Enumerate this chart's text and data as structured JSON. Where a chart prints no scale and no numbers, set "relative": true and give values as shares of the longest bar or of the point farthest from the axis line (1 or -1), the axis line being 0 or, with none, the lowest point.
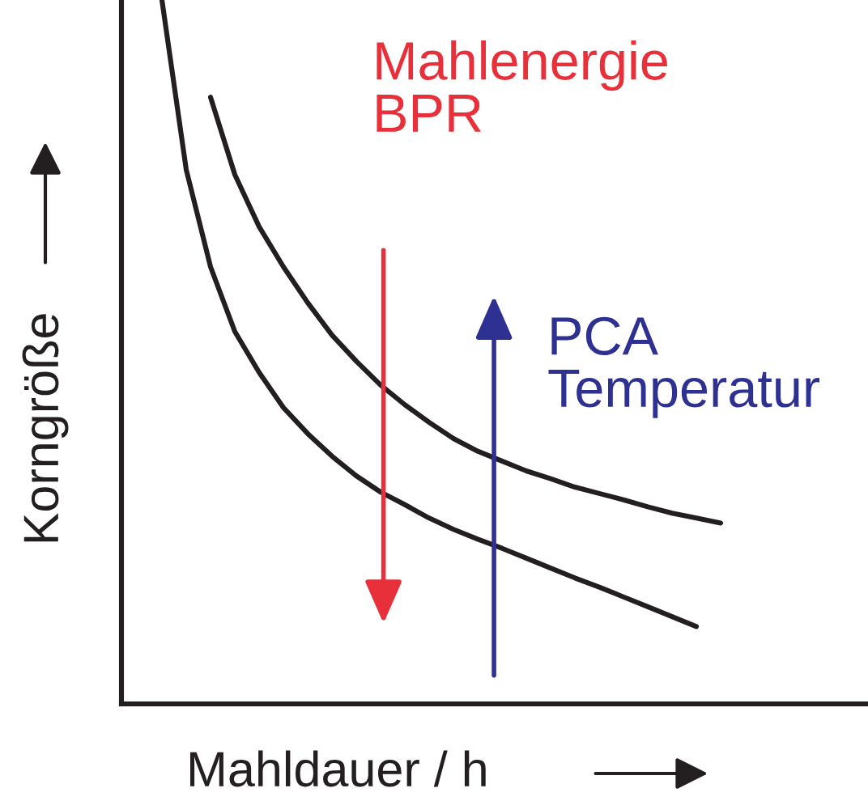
{
  "chart_data": {
    "type": "line",
    "relative": true,
    "xlabel": "Mahldauer / h",
    "ylabel": "Korngröße",
    "categories": [
      null,
      null,
      null,
      null,
      null,
      null,
      null,
      null,
      null,
      null,
      null,
      null,
      null,
      null,
      null,
      null,
      null,
      null,
      null,
      null,
      null,
      null,
      null,
      null
    ],
    "series": [
      {
        "color": "#231f20",
        "values": [
          null,
          null,
          0.862,
          0.752,
          0.678,
          0.621,
          0.57,
          0.524,
          0.487,
          0.453,
          0.425,
          0.4,
          0.377,
          0.359,
          0.345,
          0.331,
          0.32,
          0.308,
          0.299,
          0.29,
          0.28,
          0.271,
          0.264,
          0.257
        ]
      },
      {
        "color": "#231f20",
        "values": [
          1.0,
          0.759,
          0.621,
          0.529,
          0.471,
          0.421,
          0.384,
          0.352,
          0.324,
          0.301,
          0.283,
          0.264,
          0.248,
          0.234,
          0.221,
          0.207,
          0.193,
          0.179,
          0.166,
          0.152,
          0.138,
          0.124,
          0.11,
          null
        ]
      }
    ],
    "annotations": [
      "Mahlenergie\nBPR",
      "PCA\nTemperatur"
    ],
    "legend": false
  }
}
